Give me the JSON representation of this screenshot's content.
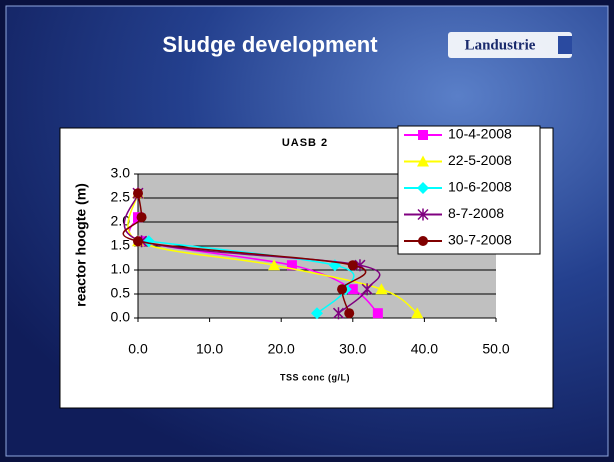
{
  "slide": {
    "title": "Sludge development",
    "logo": "Landustrie"
  },
  "chart_data": {
    "type": "line",
    "title": "UASB 2",
    "x_label": "TSS conc (g/L)",
    "y_label": "reactor hoogte (m)",
    "xlim": [
      0,
      50
    ],
    "ylim": [
      0,
      3
    ],
    "xticks": [
      {
        "value": 0,
        "label": "0.0"
      },
      {
        "value": 10,
        "label": "10.0"
      },
      {
        "value": 20,
        "label": "20.0"
      },
      {
        "value": 30,
        "label": "30.0"
      },
      {
        "value": 40,
        "label": "40.0"
      },
      {
        "value": 50,
        "label": "50.0"
      }
    ],
    "yticks": [
      {
        "value": 0,
        "label": "0.0"
      },
      {
        "value": 0.5,
        "label": "0.5"
      },
      {
        "value": 1,
        "label": "1.0"
      },
      {
        "value": 1.5,
        "label": "1.5"
      },
      {
        "value": 2,
        "label": "2.0"
      },
      {
        "value": 2.5,
        "label": "2.5"
      },
      {
        "value": 3,
        "label": "3.0"
      }
    ],
    "grid": true,
    "legend": "top-right",
    "series": [
      {
        "name": "10-4-2008",
        "color": "#ff00ff",
        "marker": "square",
        "x": [
          33.5,
          30,
          21.5,
          0.5,
          0
        ],
        "values": [
          0.1,
          0.6,
          1.1,
          1.6,
          2.1
        ]
      },
      {
        "name": "22-5-2008",
        "color": "#ffff00",
        "marker": "triangle",
        "x": [
          39,
          34,
          19,
          0,
          0
        ],
        "values": [
          0.1,
          0.6,
          1.1,
          1.6,
          2.6
        ]
      },
      {
        "name": "10-6-2008",
        "color": "#00ffff",
        "marker": "diamond",
        "x": [
          25,
          29,
          27.5,
          1.5
        ],
        "values": [
          0.1,
          0.6,
          1.1,
          1.6
        ]
      },
      {
        "name": "8-7-2008",
        "color": "#800080",
        "marker": "star",
        "x": [
          28,
          32,
          31,
          0.5,
          0
        ],
        "values": [
          0.1,
          0.6,
          1.1,
          1.6,
          2.6
        ]
      },
      {
        "name": "30-7-2008",
        "color": "#800000",
        "marker": "circle",
        "x": [
          29.5,
          28.5,
          30,
          0,
          0.5,
          0
        ],
        "values": [
          0.1,
          0.6,
          1.1,
          1.6,
          2.1,
          2.6
        ]
      }
    ]
  }
}
